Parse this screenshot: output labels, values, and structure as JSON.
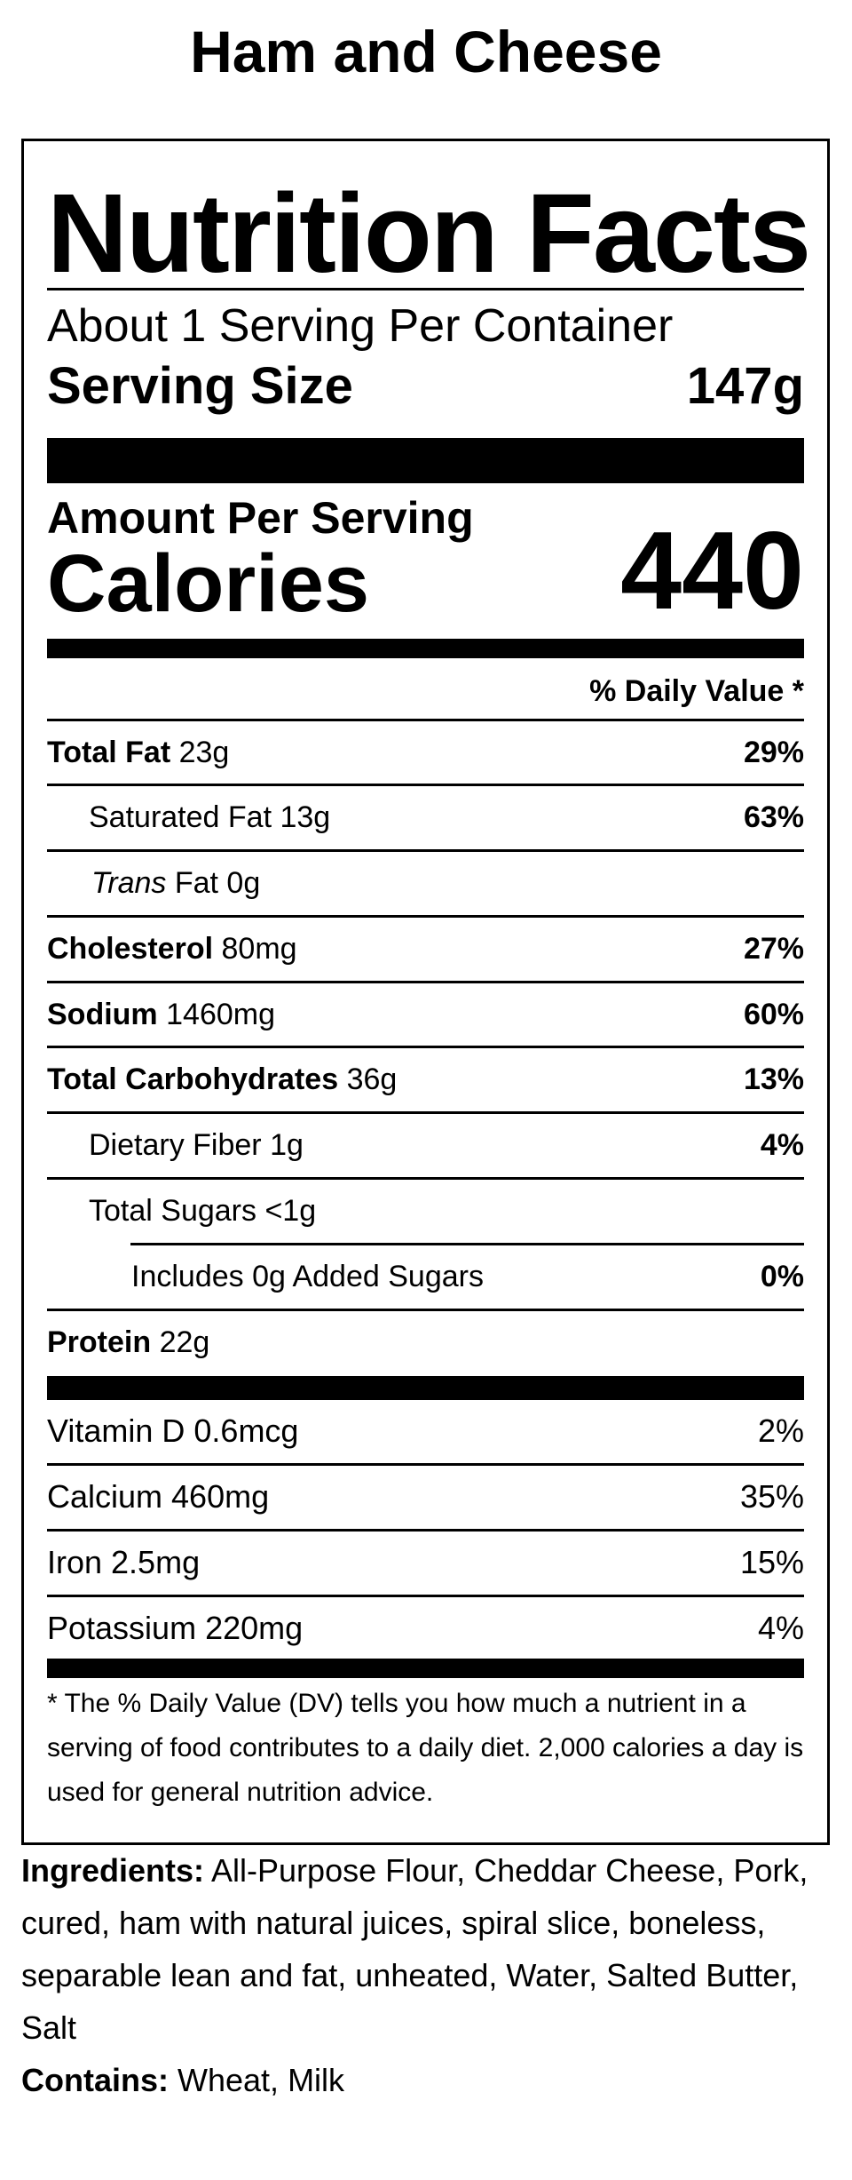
{
  "product_title": "Ham and Cheese",
  "label": {
    "heading": "Nutrition Facts",
    "servings_per_container": "About 1 Serving Per Container",
    "serving_size_label": "Serving Size",
    "serving_size_value": "147g",
    "amount_per_serving": "Amount Per Serving",
    "calories_label": "Calories",
    "calories_value": "440",
    "daily_value_header": "% Daily Value *",
    "nutrients": [
      {
        "name": "Total Fat",
        "amount": "23g",
        "dv": "29%"
      },
      {
        "name": "Saturated Fat",
        "amount": "13g",
        "dv": "63%"
      },
      {
        "name_italic": "Trans",
        "name": "Fat",
        "amount": "0g",
        "dv": ""
      },
      {
        "name": "Cholesterol",
        "amount": "80mg",
        "dv": "27%"
      },
      {
        "name": "Sodium",
        "amount": "1460mg",
        "dv": "60%"
      },
      {
        "name": "Total Carbohydrates",
        "amount": "36g",
        "dv": "13%"
      },
      {
        "name": "Dietary Fiber",
        "amount": "1g",
        "dv": "4%"
      },
      {
        "name": "Total Sugars",
        "amount": "<1g",
        "dv": ""
      },
      {
        "text": "Includes 0g Added Sugars",
        "dv": "0%"
      },
      {
        "name": "Protein",
        "amount": "22g",
        "dv": ""
      }
    ],
    "vitamins": [
      {
        "text": "Vitamin D 0.6mcg",
        "dv": "2%"
      },
      {
        "text": "Calcium 460mg",
        "dv": "35%"
      },
      {
        "text": "Iron 2.5mg",
        "dv": "15%"
      },
      {
        "text": "Potassium 220mg",
        "dv": "4%"
      }
    ],
    "footnote": "* The % Daily Value (DV) tells you how much a nutrient in a serving of food contributes to a daily diet. 2,000 calories a day is used for general nutrition advice."
  },
  "ingredients": {
    "label": "Ingredients:",
    "text": "All-Purpose Flour, Cheddar Cheese, Pork, cured, ham with natural juices, spiral slice, boneless, separable lean and fat, unheated, Water, Salted Butter, Salt"
  },
  "contains": {
    "label": "Contains:",
    "text": "Wheat, Milk"
  }
}
